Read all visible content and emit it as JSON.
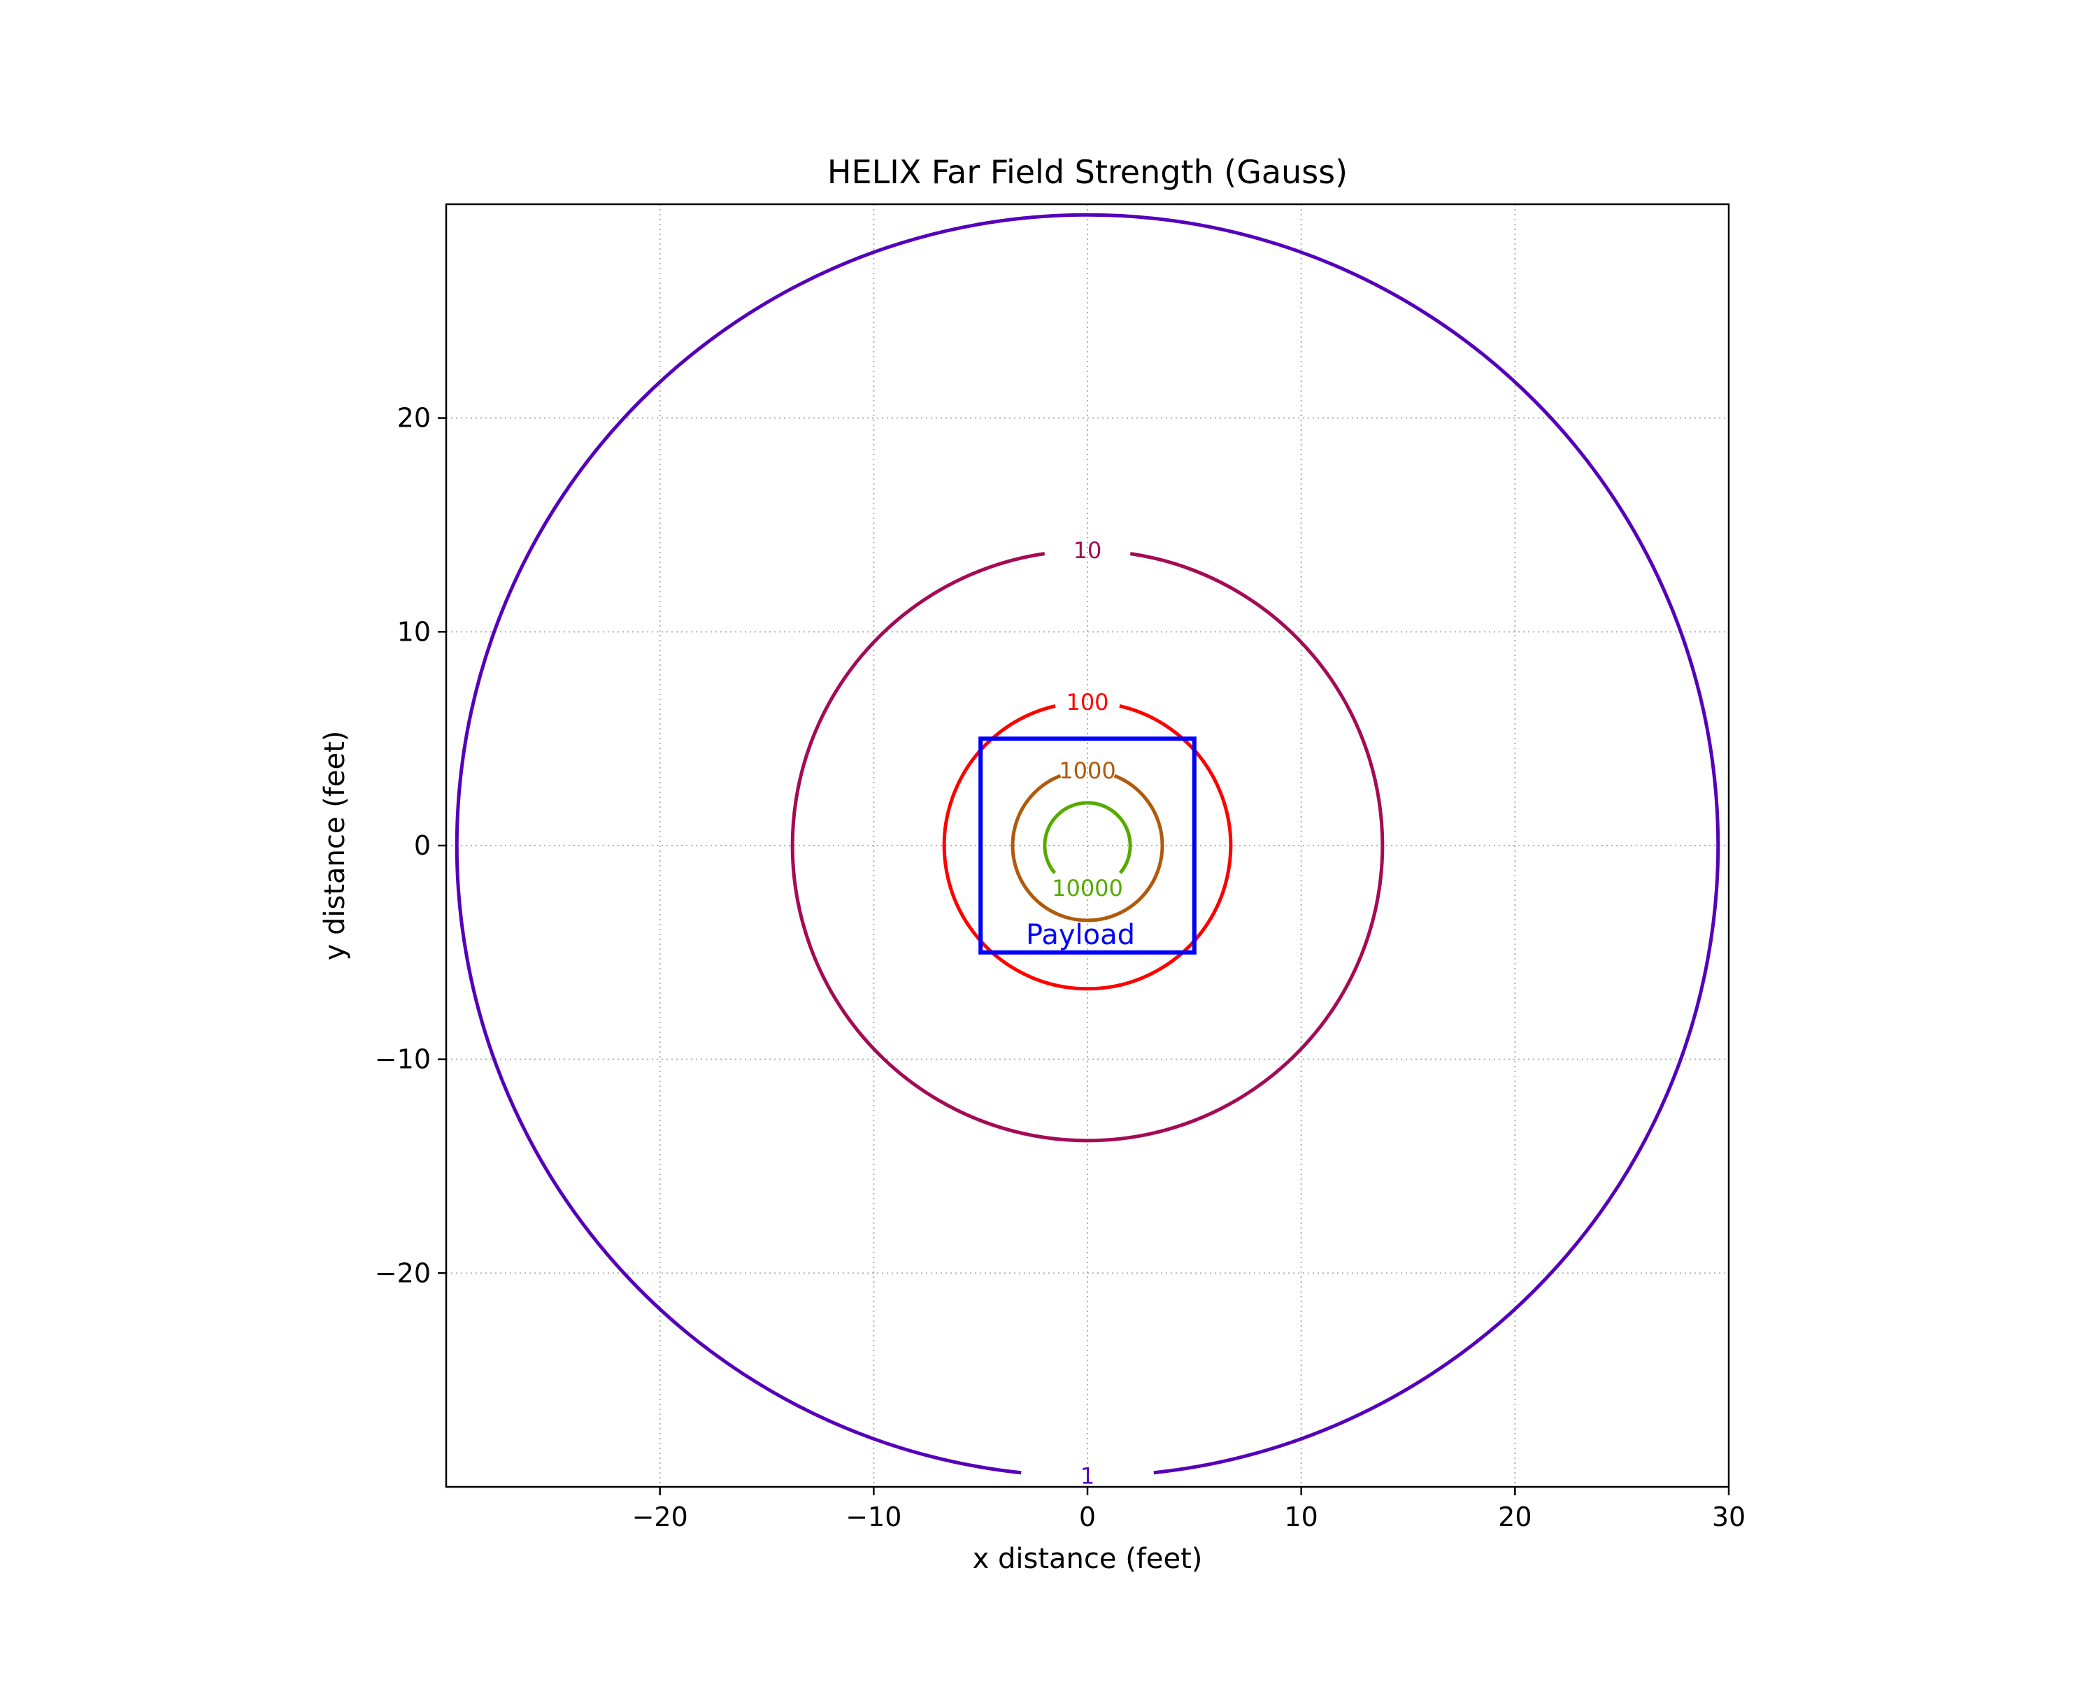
{
  "chart_data": {
    "type": "contour",
    "title": "HELIX Far Field Strength (Gauss)",
    "xlabel": "x distance (feet)",
    "ylabel": "y distance (feet)",
    "xlim": [
      -30,
      30
    ],
    "ylim": [
      -30,
      30
    ],
    "xticks": [
      -20,
      -10,
      0,
      10,
      20,
      30
    ],
    "yticks": [
      -20,
      -10,
      0,
      10,
      20
    ],
    "xtick_labels": [
      "−20",
      "−10",
      "0",
      "10",
      "20",
      "30"
    ],
    "ytick_labels": [
      "−20",
      "−10",
      "0",
      "10",
      "20"
    ],
    "grid": true,
    "contours": [
      {
        "level": 1,
        "label": "1",
        "radius": 29.5,
        "color": "#5500bb",
        "label_angle": -90
      },
      {
        "level": 10,
        "label": "10",
        "radius": 13.8,
        "color": "#a50a55",
        "label_angle": 90
      },
      {
        "level": 100,
        "label": "100",
        "radius": 6.7,
        "color": "#ff0000",
        "label_angle": 90
      },
      {
        "level": 1000,
        "label": "1000",
        "radius": 3.5,
        "color": "#b05a0c",
        "label_angle": 90
      },
      {
        "level": 10000,
        "label": "10000",
        "radius": 2.0,
        "color": "#55aa00",
        "label_angle": -90,
        "arc_gap_deg": [
          -140,
          -40
        ]
      }
    ],
    "payload": {
      "label": "Payload",
      "x_range": [
        -5,
        5
      ],
      "y_range": [
        -5,
        5
      ],
      "color": "#0000ff"
    }
  }
}
